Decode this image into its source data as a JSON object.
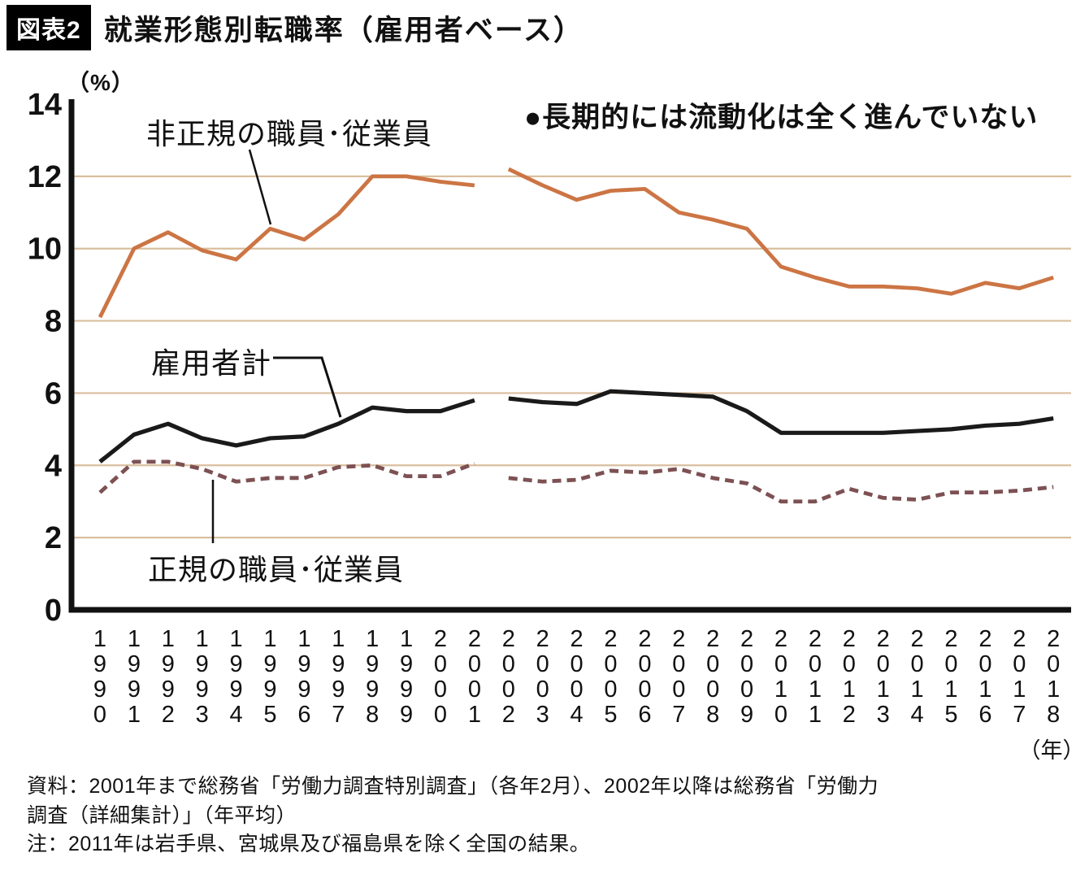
{
  "header": {
    "tag": "図表2",
    "title": "就業形態別転職率（雇用者ベース）"
  },
  "chart_data": {
    "type": "line",
    "title": "就業形態別転職率（雇用者ベース）",
    "y_unit": "（%）",
    "x_unit": "（年）",
    "annotation": "●長期的には流動化は全く進んでいない",
    "ylim": [
      0,
      14
    ],
    "yticks": [
      0,
      2,
      4,
      6,
      8,
      10,
      12,
      14
    ],
    "gridlines": [
      2,
      4,
      6,
      8,
      10,
      12
    ],
    "grid_color": "#d9bf9f",
    "gap_after_index": 11,
    "x": [
      1990,
      1991,
      1992,
      1993,
      1994,
      1995,
      1996,
      1997,
      1998,
      1999,
      2000,
      2001,
      2002,
      2003,
      2004,
      2005,
      2006,
      2007,
      2008,
      2009,
      2010,
      2011,
      2012,
      2013,
      2014,
      2015,
      2016,
      2017,
      2018
    ],
    "series": [
      {
        "name": "非正規の職員･従業員",
        "color": "#cc7544",
        "dashed": false,
        "values": [
          8.1,
          10.0,
          10.45,
          9.95,
          9.7,
          10.55,
          10.25,
          10.95,
          12.0,
          12.0,
          11.85,
          11.75,
          12.2,
          11.75,
          11.35,
          11.6,
          11.65,
          11.0,
          10.8,
          10.55,
          9.5,
          9.2,
          8.95,
          8.95,
          8.9,
          8.75,
          9.05,
          8.9,
          9.2
        ]
      },
      {
        "name": "雇用者計",
        "color": "#1a1a1a",
        "dashed": false,
        "values": [
          4.1,
          4.85,
          5.15,
          4.75,
          4.55,
          4.75,
          4.8,
          5.15,
          5.6,
          5.5,
          5.5,
          5.8,
          5.85,
          5.75,
          5.7,
          6.05,
          6.0,
          5.95,
          5.9,
          5.5,
          4.9,
          4.9,
          4.9,
          4.9,
          4.95,
          5.0,
          5.1,
          5.15,
          5.3
        ]
      },
      {
        "name": "正規の職員･従業員",
        "color": "#7d5153",
        "dashed": true,
        "values": [
          3.25,
          4.1,
          4.1,
          3.9,
          3.55,
          3.65,
          3.65,
          3.95,
          4.0,
          3.7,
          3.7,
          4.05,
          3.65,
          3.55,
          3.6,
          3.85,
          3.8,
          3.9,
          3.65,
          3.5,
          3.0,
          3.0,
          3.35,
          3.1,
          3.05,
          3.25,
          3.25,
          3.3,
          3.4
        ]
      }
    ]
  },
  "footer": {
    "source_lines": [
      "資料：2001年まで総務省「労働力調査特別調査」（各年2月）、2002年以降は総務省「労働力",
      "調査（詳細集計）」（年平均）"
    ],
    "note": "注：2011年は岩手県、宮城県及び福島県を除く全国の結果。"
  }
}
